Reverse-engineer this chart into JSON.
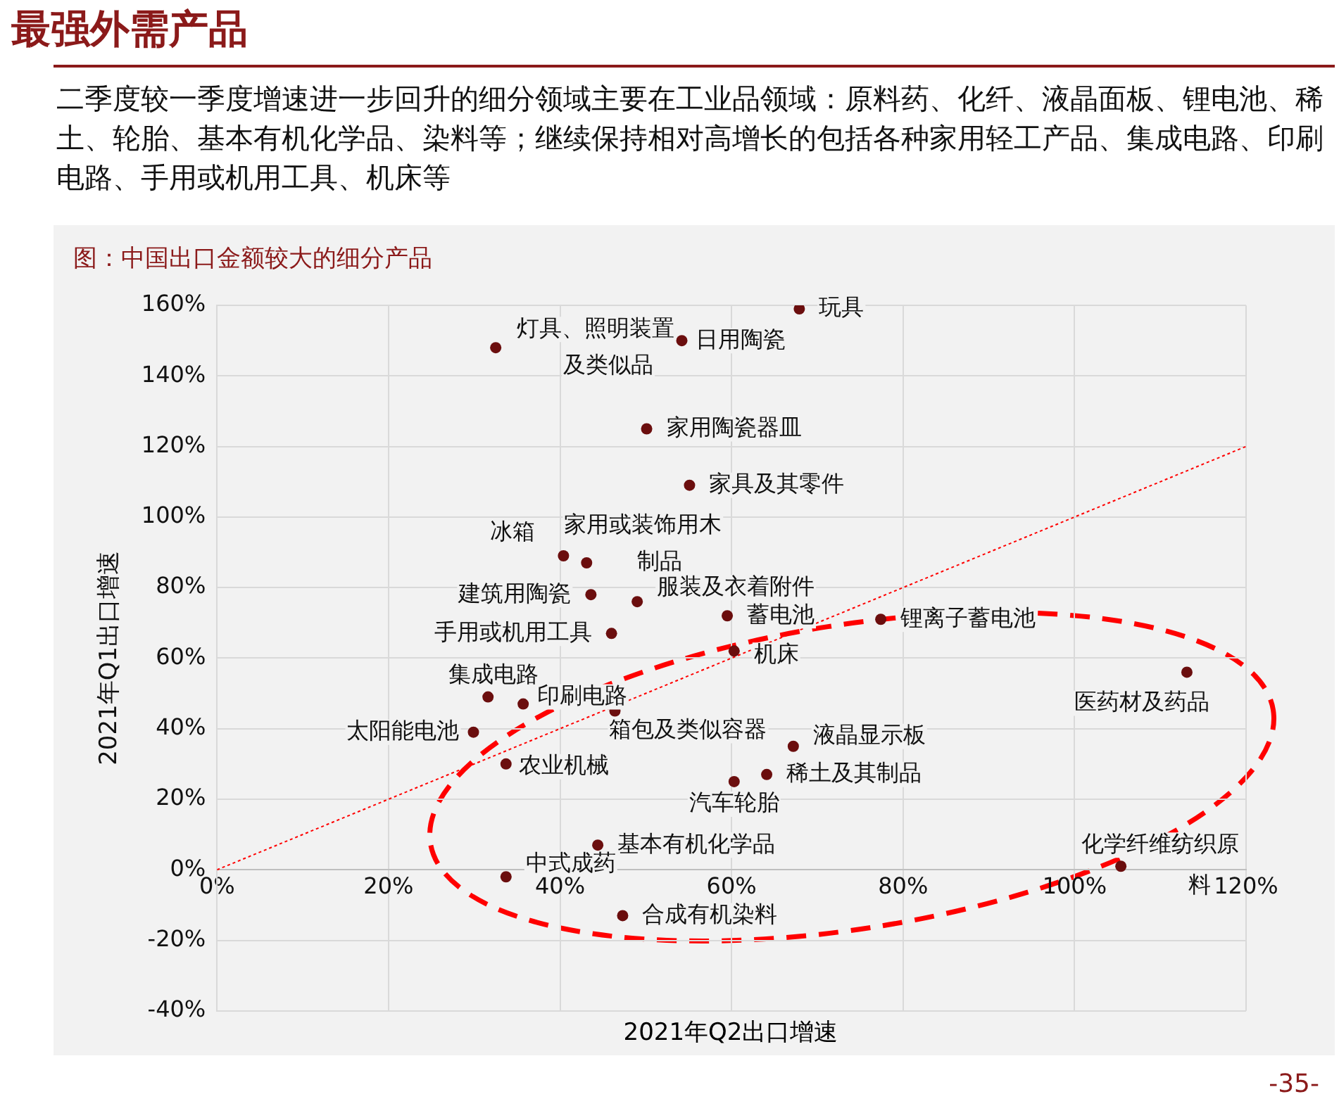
{
  "chart_data": {
    "type": "scatter",
    "title": "最强外需产品",
    "subtitle": "二季度较一季度增速进一步回升的细分领域主要在工业品领域：原料药、化纤、液晶面板、锂电池、稀土、轮胎、基本有机化学品、染料等；继续保持相对高增长的包括各种家用轻工产品、集成电路、印刷电路、手用或机用工具、机床等",
    "xlabel": "2021年Q2出口增速",
    "ylabel": "2021年Q1出口增速",
    "xlim": [
      0,
      120
    ],
    "xticks": [
      {
        "value": 0,
        "label": "0%"
      },
      {
        "value": 20,
        "label": "20%"
      },
      {
        "value": 40,
        "label": "40%"
      },
      {
        "value": 60,
        "label": "60%"
      },
      {
        "value": 80,
        "label": "80%"
      },
      {
        "value": 100,
        "label": "100%"
      },
      {
        "value": 120,
        "label": "120%"
      }
    ],
    "ylim": [
      -40,
      160
    ],
    "yticks": [
      {
        "value": -40,
        "label": "-40%"
      },
      {
        "value": -20,
        "label": "-20%"
      },
      {
        "value": 0,
        "label": "0%"
      },
      {
        "value": 20,
        "label": "20%"
      },
      {
        "value": 40,
        "label": "40%"
      },
      {
        "value": 60,
        "label": "60%"
      },
      {
        "value": 80,
        "label": "80%"
      },
      {
        "value": 100,
        "label": "100%"
      },
      {
        "value": 120,
        "label": "120%"
      },
      {
        "value": 140,
        "label": "140%"
      },
      {
        "value": 160,
        "label": "160%"
      }
    ],
    "grid": true,
    "legend": false,
    "series": [
      {
        "type": "scatter",
        "color": "#6b0e0e",
        "marker": "circle",
        "x": [
          32.5,
          54.2,
          67.9,
          50.1,
          55.1,
          40.4,
          43.1,
          43.6,
          49.0,
          59.5,
          77.4,
          46.0,
          60.3,
          31.6,
          35.7,
          29.9,
          46.4,
          67.2,
          113.1,
          64.1,
          60.3,
          33.7,
          44.4,
          33.7,
          47.3,
          105.4
        ],
        "values": [
          148,
          150,
          159,
          125,
          109,
          89,
          87,
          78,
          76,
          72,
          71,
          67,
          62,
          49,
          47,
          39,
          45,
          35,
          56,
          27,
          25,
          30,
          7,
          -2,
          -13,
          1
        ]
      },
      {
        "type": "line",
        "color": "#ff0000",
        "line_style": "dotted",
        "marker": "none",
        "x": [
          0,
          120
        ],
        "values": [
          0,
          120
        ]
      }
    ],
    "annotations": [
      "图：中国出口金额较大的细分产品",
      {
        "text": "灯具、照明装置及类似品",
        "x": 32.5,
        "y": 148
      },
      {
        "text": "日用陶瓷",
        "x": 54.2,
        "y": 150
      },
      {
        "text": "玩具",
        "x": 67.9,
        "y": 159
      },
      {
        "text": "家用陶瓷器皿",
        "x": 50.1,
        "y": 125
      },
      {
        "text": "家具及其零件",
        "x": 55.1,
        "y": 109
      },
      {
        "text": "冰箱",
        "x": 40.4,
        "y": 89
      },
      {
        "text": "家用或装饰用木制品",
        "x": 43.1,
        "y": 87
      },
      {
        "text": "建筑用陶瓷",
        "x": 43.6,
        "y": 78
      },
      {
        "text": "服装及衣着附件",
        "x": 49.0,
        "y": 76
      },
      {
        "text": "蓄电池",
        "x": 59.5,
        "y": 72
      },
      {
        "text": "锂离子蓄电池",
        "x": 77.4,
        "y": 71
      },
      {
        "text": "手用或机用工具",
        "x": 46.0,
        "y": 67
      },
      {
        "text": "机床",
        "x": 60.3,
        "y": 62
      },
      {
        "text": "集成电路",
        "x": 31.6,
        "y": 49
      },
      {
        "text": "印刷电路",
        "x": 35.7,
        "y": 47
      },
      {
        "text": "太阳能电池",
        "x": 29.9,
        "y": 39
      },
      {
        "text": "箱包及类似容器",
        "x": 46.4,
        "y": 45
      },
      {
        "text": "液晶显示板",
        "x": 67.2,
        "y": 35
      },
      {
        "text": "医药材及药品",
        "x": 113.1,
        "y": 56
      },
      {
        "text": "稀土及其制品",
        "x": 64.1,
        "y": 27
      },
      {
        "text": "汽车轮胎",
        "x": 60.3,
        "y": 25
      },
      {
        "text": "农业机械",
        "x": 33.7,
        "y": 30
      },
      {
        "text": "基本有机化学品",
        "x": 44.4,
        "y": 7
      },
      {
        "text": "中式成药",
        "x": 33.7,
        "y": -2
      },
      {
        "text": "合成有机染料",
        "x": 47.3,
        "y": -13
      },
      {
        "text": "化学纤维纺织原料",
        "x": 105.4,
        "y": 1
      },
      "-35-"
    ]
  }
}
